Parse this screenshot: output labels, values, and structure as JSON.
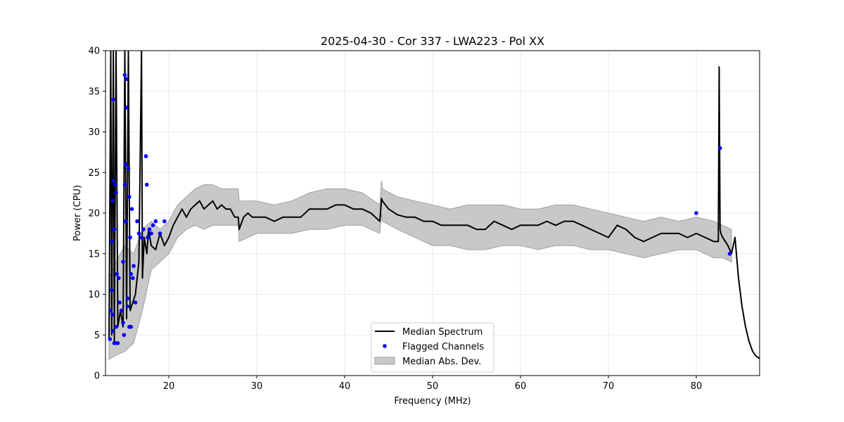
{
  "chart_data": {
    "type": "line",
    "title": "2025-04-30 - Cor 337 - LWA223 - Pol XX",
    "xlabel": "Frequency (MHz)",
    "ylabel": "Power (CPU)",
    "xlim": [
      12.8,
      87.2
    ],
    "ylim": [
      0,
      40
    ],
    "xticks": [
      20,
      30,
      40,
      50,
      60,
      70,
      80
    ],
    "yticks": [
      0,
      5,
      10,
      15,
      20,
      25,
      30,
      35,
      40
    ],
    "grid": true,
    "legend_position": "lower-center",
    "legend": [
      "Median Spectrum",
      "Flagged Channels",
      "Median Abs. Dev."
    ],
    "series": [
      {
        "name": "Median Spectrum",
        "style": "line",
        "color": "#000000",
        "x": [
          13.2,
          13.4,
          13.5,
          13.7,
          13.8,
          14.0,
          14.2,
          14.5,
          14.8,
          15.0,
          15.2,
          15.4,
          15.6,
          15.9,
          16.2,
          16.6,
          16.9,
          17.0,
          17.2,
          17.5,
          17.7,
          18.0,
          18.5,
          19.0,
          19.5,
          20.0,
          20.5,
          21.0,
          21.5,
          22.0,
          22.5,
          23.0,
          23.5,
          24.0,
          24.5,
          25.0,
          25.5,
          26.0,
          26.5,
          27.0,
          27.5,
          27.9,
          28.0,
          28.5,
          29.0,
          29.5,
          30.0,
          31.0,
          32.0,
          33.0,
          34.0,
          35.0,
          36.0,
          37.0,
          38.0,
          39.0,
          40.0,
          41.0,
          42.0,
          43.0,
          44.0,
          44.2,
          44.3,
          45.0,
          46.0,
          47.0,
          48.0,
          49.0,
          50.0,
          51.0,
          52.0,
          53.0,
          54.0,
          55.0,
          56.0,
          57.0,
          58.0,
          59.0,
          60.0,
          61.0,
          62.0,
          63.0,
          64.0,
          65.0,
          66.0,
          67.0,
          68.0,
          69.0,
          70.0,
          71.0,
          72.0,
          73.0,
          74.0,
          75.0,
          76.0,
          77.0,
          78.0,
          79.0,
          80.0,
          81.0,
          82.0,
          82.5,
          82.6,
          82.7,
          82.8,
          83.0,
          83.3,
          83.6,
          84.0,
          84.4,
          84.8,
          85.2,
          85.6,
          86.0,
          86.4,
          86.8,
          87.2
        ],
        "values": [
          4.5,
          40,
          5,
          40,
          4.2,
          40,
          6,
          8,
          6,
          40,
          7,
          40,
          8,
          9,
          10,
          14,
          40,
          12,
          17,
          15,
          18,
          16,
          15.5,
          17.5,
          16,
          17,
          18.5,
          19.5,
          20.5,
          19.5,
          20.5,
          21,
          21.5,
          20.5,
          21,
          21.5,
          20.5,
          21,
          20.5,
          20.5,
          19.5,
          19.5,
          18,
          19.5,
          20,
          19.5,
          19.5,
          19.5,
          19,
          19.5,
          19.5,
          19.5,
          20.5,
          20.5,
          20.5,
          21,
          21,
          20.5,
          20.5,
          20,
          19,
          21.8,
          21.5,
          20.5,
          19.8,
          19.5,
          19.5,
          19,
          19,
          18.5,
          18.5,
          18.5,
          18.5,
          18,
          18,
          19,
          18.5,
          18,
          18.5,
          18.5,
          18.5,
          19,
          18.5,
          19,
          19,
          18.5,
          18,
          17.5,
          17,
          18.5,
          18,
          17,
          16.5,
          17,
          17.5,
          17.5,
          17.5,
          17,
          17.5,
          17,
          16.5,
          16.5,
          38,
          18,
          17.5,
          17,
          16.5,
          16,
          15,
          17,
          12,
          8.5,
          6,
          4.2,
          3,
          2.4,
          2.1
        ]
      },
      {
        "name": "Flagged Channels",
        "style": "scatter",
        "color": "#0000ff",
        "x": [
          13.3,
          13.4,
          13.5,
          13.6,
          13.6,
          13.7,
          13.8,
          13.9,
          14.0,
          14.1,
          14.2,
          14.4,
          14.6,
          14.8,
          14.9,
          15.0,
          15.0,
          15.1,
          15.1,
          15.2,
          15.2,
          15.3,
          15.4,
          15.5,
          15.6,
          15.7,
          15.8,
          15.9,
          16.0,
          16.2,
          16.4,
          16.6,
          16.9,
          17.1,
          17.4,
          17.5,
          17.6,
          17.8,
          18.0,
          18.2,
          18.5,
          19.0,
          19.5,
          13.5,
          13.6,
          13.7,
          13.8,
          13.9,
          14.0,
          14.3,
          14.8,
          15.3,
          15.5,
          15.7,
          80.0,
          82.7,
          83.8
        ],
        "values": [
          4.5,
          8.0,
          10.5,
          5.5,
          7.5,
          34.0,
          18.0,
          23.5,
          22.5,
          12.5,
          4.0,
          9.0,
          8.0,
          14.0,
          5.0,
          23.5,
          37.0,
          19.0,
          26.0,
          33.0,
          36.5,
          9.5,
          25.5,
          22.0,
          17.0,
          12.5,
          20.5,
          12.0,
          13.5,
          9.0,
          19.0,
          17.5,
          17.0,
          18.0,
          27.0,
          23.5,
          17.0,
          18.0,
          17.5,
          18.5,
          19.0,
          17.5,
          19.0,
          16.5,
          21.5,
          24.0,
          4.0,
          4.0,
          6.0,
          12.0,
          6.5,
          8.5,
          6.0,
          6.0,
          20.0,
          28.0,
          15.0
        ]
      },
      {
        "name": "Median Abs. Dev.",
        "style": "band",
        "color": "#a0a0a0",
        "x": [
          13.2,
          14.0,
          15.0,
          16.0,
          17.0,
          18.0,
          19.0,
          20.0,
          21.0,
          22.0,
          23.0,
          24.0,
          25.0,
          26.0,
          27.0,
          27.9,
          28.0,
          30.0,
          32.0,
          34.0,
          36.0,
          38.0,
          40.0,
          42.0,
          44.0,
          44.2,
          44.3,
          46.0,
          48.0,
          50.0,
          52.0,
          54.0,
          56.0,
          58.0,
          60.0,
          62.0,
          64.0,
          66.0,
          68.0,
          70.0,
          72.0,
          74.0,
          76.0,
          78.0,
          80.0,
          82.0,
          83.0,
          84.0
        ],
        "upper": [
          12,
          14,
          16,
          15,
          18,
          19,
          18,
          19,
          21,
          22,
          23,
          23.5,
          23.5,
          23,
          23,
          23,
          21.5,
          21.5,
          21,
          21.5,
          22.5,
          23,
          23,
          22.5,
          21,
          24,
          23,
          22,
          21.5,
          21,
          20.5,
          21,
          21,
          21,
          20.5,
          20.5,
          21,
          21,
          20.5,
          20,
          19.5,
          19,
          19.5,
          19,
          19.5,
          19,
          18.5,
          18
        ],
        "lower": [
          2,
          2.5,
          3,
          4,
          8,
          13,
          14,
          15,
          17,
          18,
          18.5,
          18,
          18.5,
          18.5,
          18.5,
          18.5,
          16.5,
          17.5,
          17.5,
          17.5,
          18,
          18,
          18.5,
          18.5,
          17.5,
          20,
          19,
          18,
          17,
          16,
          16,
          15.5,
          15.5,
          16,
          16,
          15.5,
          16,
          16,
          15.5,
          15.5,
          15,
          14.5,
          15,
          15.5,
          15.5,
          14.5,
          14.5,
          14
        ]
      }
    ]
  }
}
